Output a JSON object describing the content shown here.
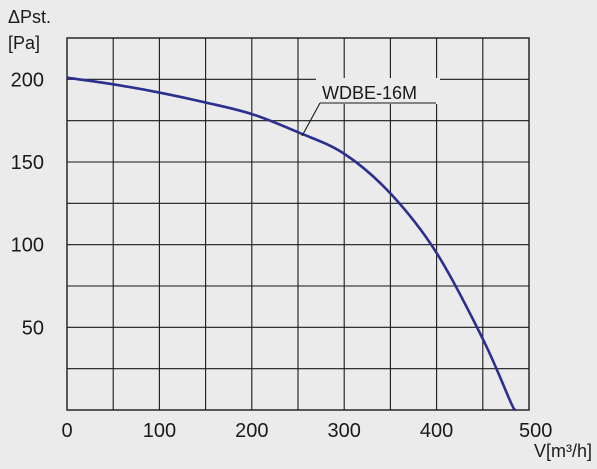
{
  "chart_data": {
    "type": "line",
    "ylabel_symbol": "ΔPst.",
    "ylabel_unit": "[Pa]",
    "xlabel": "V[m³/h]",
    "xlim": [
      0,
      500
    ],
    "ylim": [
      0,
      225
    ],
    "x_ticks": [
      0,
      100,
      200,
      300,
      400,
      500
    ],
    "y_ticks": [
      50,
      100,
      150,
      200
    ],
    "x_grid_step": 50,
    "y_grid_step": 25,
    "grid": true,
    "series": [
      {
        "name": "WDBE-16M",
        "color": "#2b2f8e",
        "x": [
          0,
          50,
          100,
          150,
          200,
          250,
          300,
          350,
          400,
          450,
          480,
          485
        ],
        "y": [
          201,
          197,
          192,
          186,
          179,
          168,
          155,
          131,
          95,
          43,
          5,
          0
        ]
      }
    ]
  }
}
